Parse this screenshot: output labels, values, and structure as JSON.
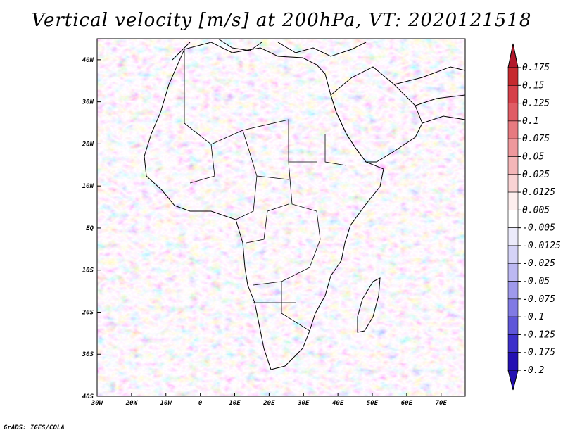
{
  "title": "Vertical velocity [m/s] at 200hPa, VT: 2020121518",
  "credit": "GrADS: IGES/COLA",
  "map": {
    "lon_range": [
      -30,
      77
    ],
    "lat_range": [
      -40,
      45
    ],
    "lon_ticks": [
      "30W",
      "20W",
      "10W",
      "0",
      "10E",
      "20E",
      "30E",
      "40E",
      "50E",
      "60E",
      "70E"
    ],
    "lat_ticks": [
      "40N",
      "30N",
      "20N",
      "10N",
      "EQ",
      "10S",
      "20S",
      "30S",
      "40S"
    ]
  },
  "colorbar": {
    "labels": [
      "0.175",
      "0.15",
      "0.125",
      "0.1",
      "0.075",
      "0.05",
      "0.025",
      "0.0125",
      "0.005",
      "-0.005",
      "-0.0125",
      "-0.025",
      "-0.05",
      "-0.075",
      "-0.1",
      "-0.125",
      "-0.175",
      "-0.2"
    ],
    "colors": [
      "#b2182b",
      "#c62a2f",
      "#d6404a",
      "#e05c65",
      "#e77a80",
      "#ee989c",
      "#f4b6b8",
      "#f9d3d4",
      "#fdeeee",
      "#ffffff",
      "#ecebfb",
      "#d5d3f7",
      "#bcb8f2",
      "#9f99ec",
      "#817ae4",
      "#5f56d9",
      "#3c2fca",
      "#2410b2"
    ]
  }
}
